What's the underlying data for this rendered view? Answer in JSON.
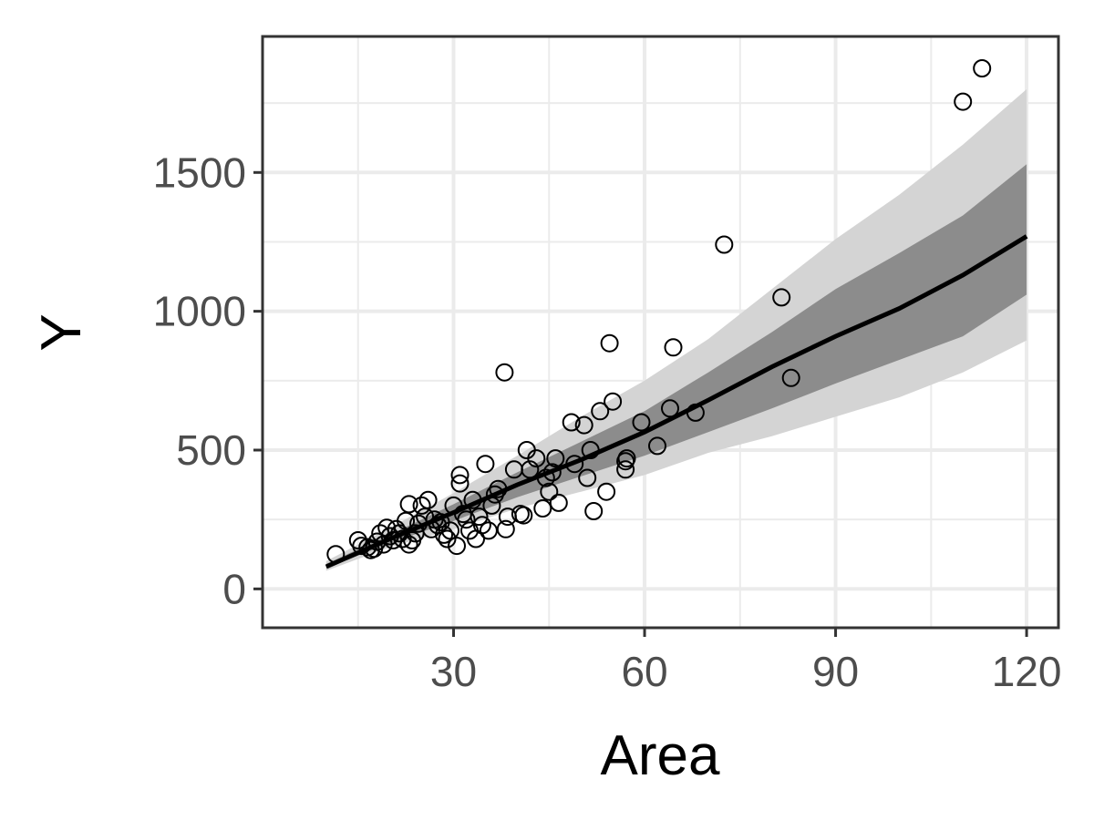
{
  "chart_data": {
    "type": "scatter",
    "title": "",
    "xlabel": "Area",
    "ylabel": "Y",
    "xlim": [
      0,
      125
    ],
    "ylim": [
      -140,
      1990
    ],
    "x_ticks": [
      30,
      60,
      90,
      120
    ],
    "y_ticks": [
      0,
      500,
      1000,
      1500
    ],
    "grid": true,
    "legend": "none",
    "colors": {
      "panel_background": "#ffffff",
      "grid": "#ebebeb",
      "border": "#333333",
      "outer_band": "#d4d4d4",
      "inner_band": "#8c8c8c",
      "fit_line": "#000000",
      "points": "#000000"
    },
    "series": [
      {
        "kind": "points",
        "x": [
          11.5,
          15,
          15.5,
          16.5,
          17,
          17.5,
          18,
          18.5,
          19,
          19.5,
          20,
          20.5,
          21,
          21.5,
          22,
          22.5,
          23,
          23,
          23.5,
          24,
          24.5,
          25,
          25.5,
          26,
          26.5,
          27,
          27.5,
          28,
          28.5,
          29,
          29.5,
          30,
          30.5,
          31,
          31,
          31.5,
          32,
          32.5,
          33,
          33.5,
          34,
          34.5,
          35,
          35.5,
          36,
          36.5,
          37,
          38,
          38.2,
          38.5,
          39.5,
          40.5,
          41,
          41.5,
          42,
          43,
          44,
          44.5,
          45,
          45.5,
          46,
          46.5,
          48.5,
          49,
          50.5,
          51,
          51.5,
          52,
          53,
          54,
          54.5,
          55,
          57,
          57,
          57.2,
          59.5,
          62,
          64,
          64.5,
          68,
          72.5,
          81.5,
          83,
          110,
          113
        ],
        "y": [
          125,
          175,
          155,
          150,
          140,
          145,
          170,
          200,
          160,
          220,
          190,
          175,
          215,
          200,
          180,
          245,
          160,
          305,
          175,
          200,
          235,
          300,
          260,
          320,
          215,
          250,
          230,
          240,
          195,
          180,
          210,
          300,
          155,
          410,
          380,
          270,
          250,
          210,
          320,
          180,
          260,
          230,
          450,
          210,
          300,
          340,
          360,
          780,
          215,
          260,
          430,
          270,
          265,
          500,
          430,
          470,
          290,
          400,
          350,
          420,
          470,
          310,
          600,
          450,
          590,
          400,
          500,
          280,
          640,
          350,
          885,
          675,
          460,
          430,
          470,
          600,
          515,
          650,
          870,
          635,
          1240,
          1050,
          760,
          1755,
          1875
        ]
      },
      {
        "kind": "fit-line",
        "x": [
          10,
          20,
          30,
          40,
          50,
          60,
          70,
          80,
          90,
          100,
          110,
          120
        ],
        "y": [
          80,
          180,
          275,
          375,
          465,
          565,
          680,
          800,
          910,
          1010,
          1130,
          1270
        ]
      },
      {
        "kind": "inner-band",
        "x": [
          10,
          20,
          30,
          40,
          50,
          60,
          70,
          80,
          90,
          100,
          110,
          120
        ],
        "lower": [
          75,
          165,
          245,
          330,
          405,
          480,
          565,
          650,
          740,
          825,
          910,
          1060
        ],
        "upper": [
          90,
          195,
          305,
          420,
          530,
          640,
          780,
          925,
          1080,
          1210,
          1345,
          1530
        ]
      },
      {
        "kind": "outer-band",
        "x": [
          10,
          20,
          30,
          40,
          50,
          60,
          70,
          80,
          90,
          100,
          110,
          120
        ],
        "lower": [
          65,
          150,
          215,
          290,
          350,
          410,
          490,
          550,
          620,
          690,
          780,
          895
        ],
        "upper": [
          100,
          220,
          345,
          480,
          620,
          750,
          900,
          1080,
          1260,
          1420,
          1600,
          1800
        ]
      }
    ]
  }
}
